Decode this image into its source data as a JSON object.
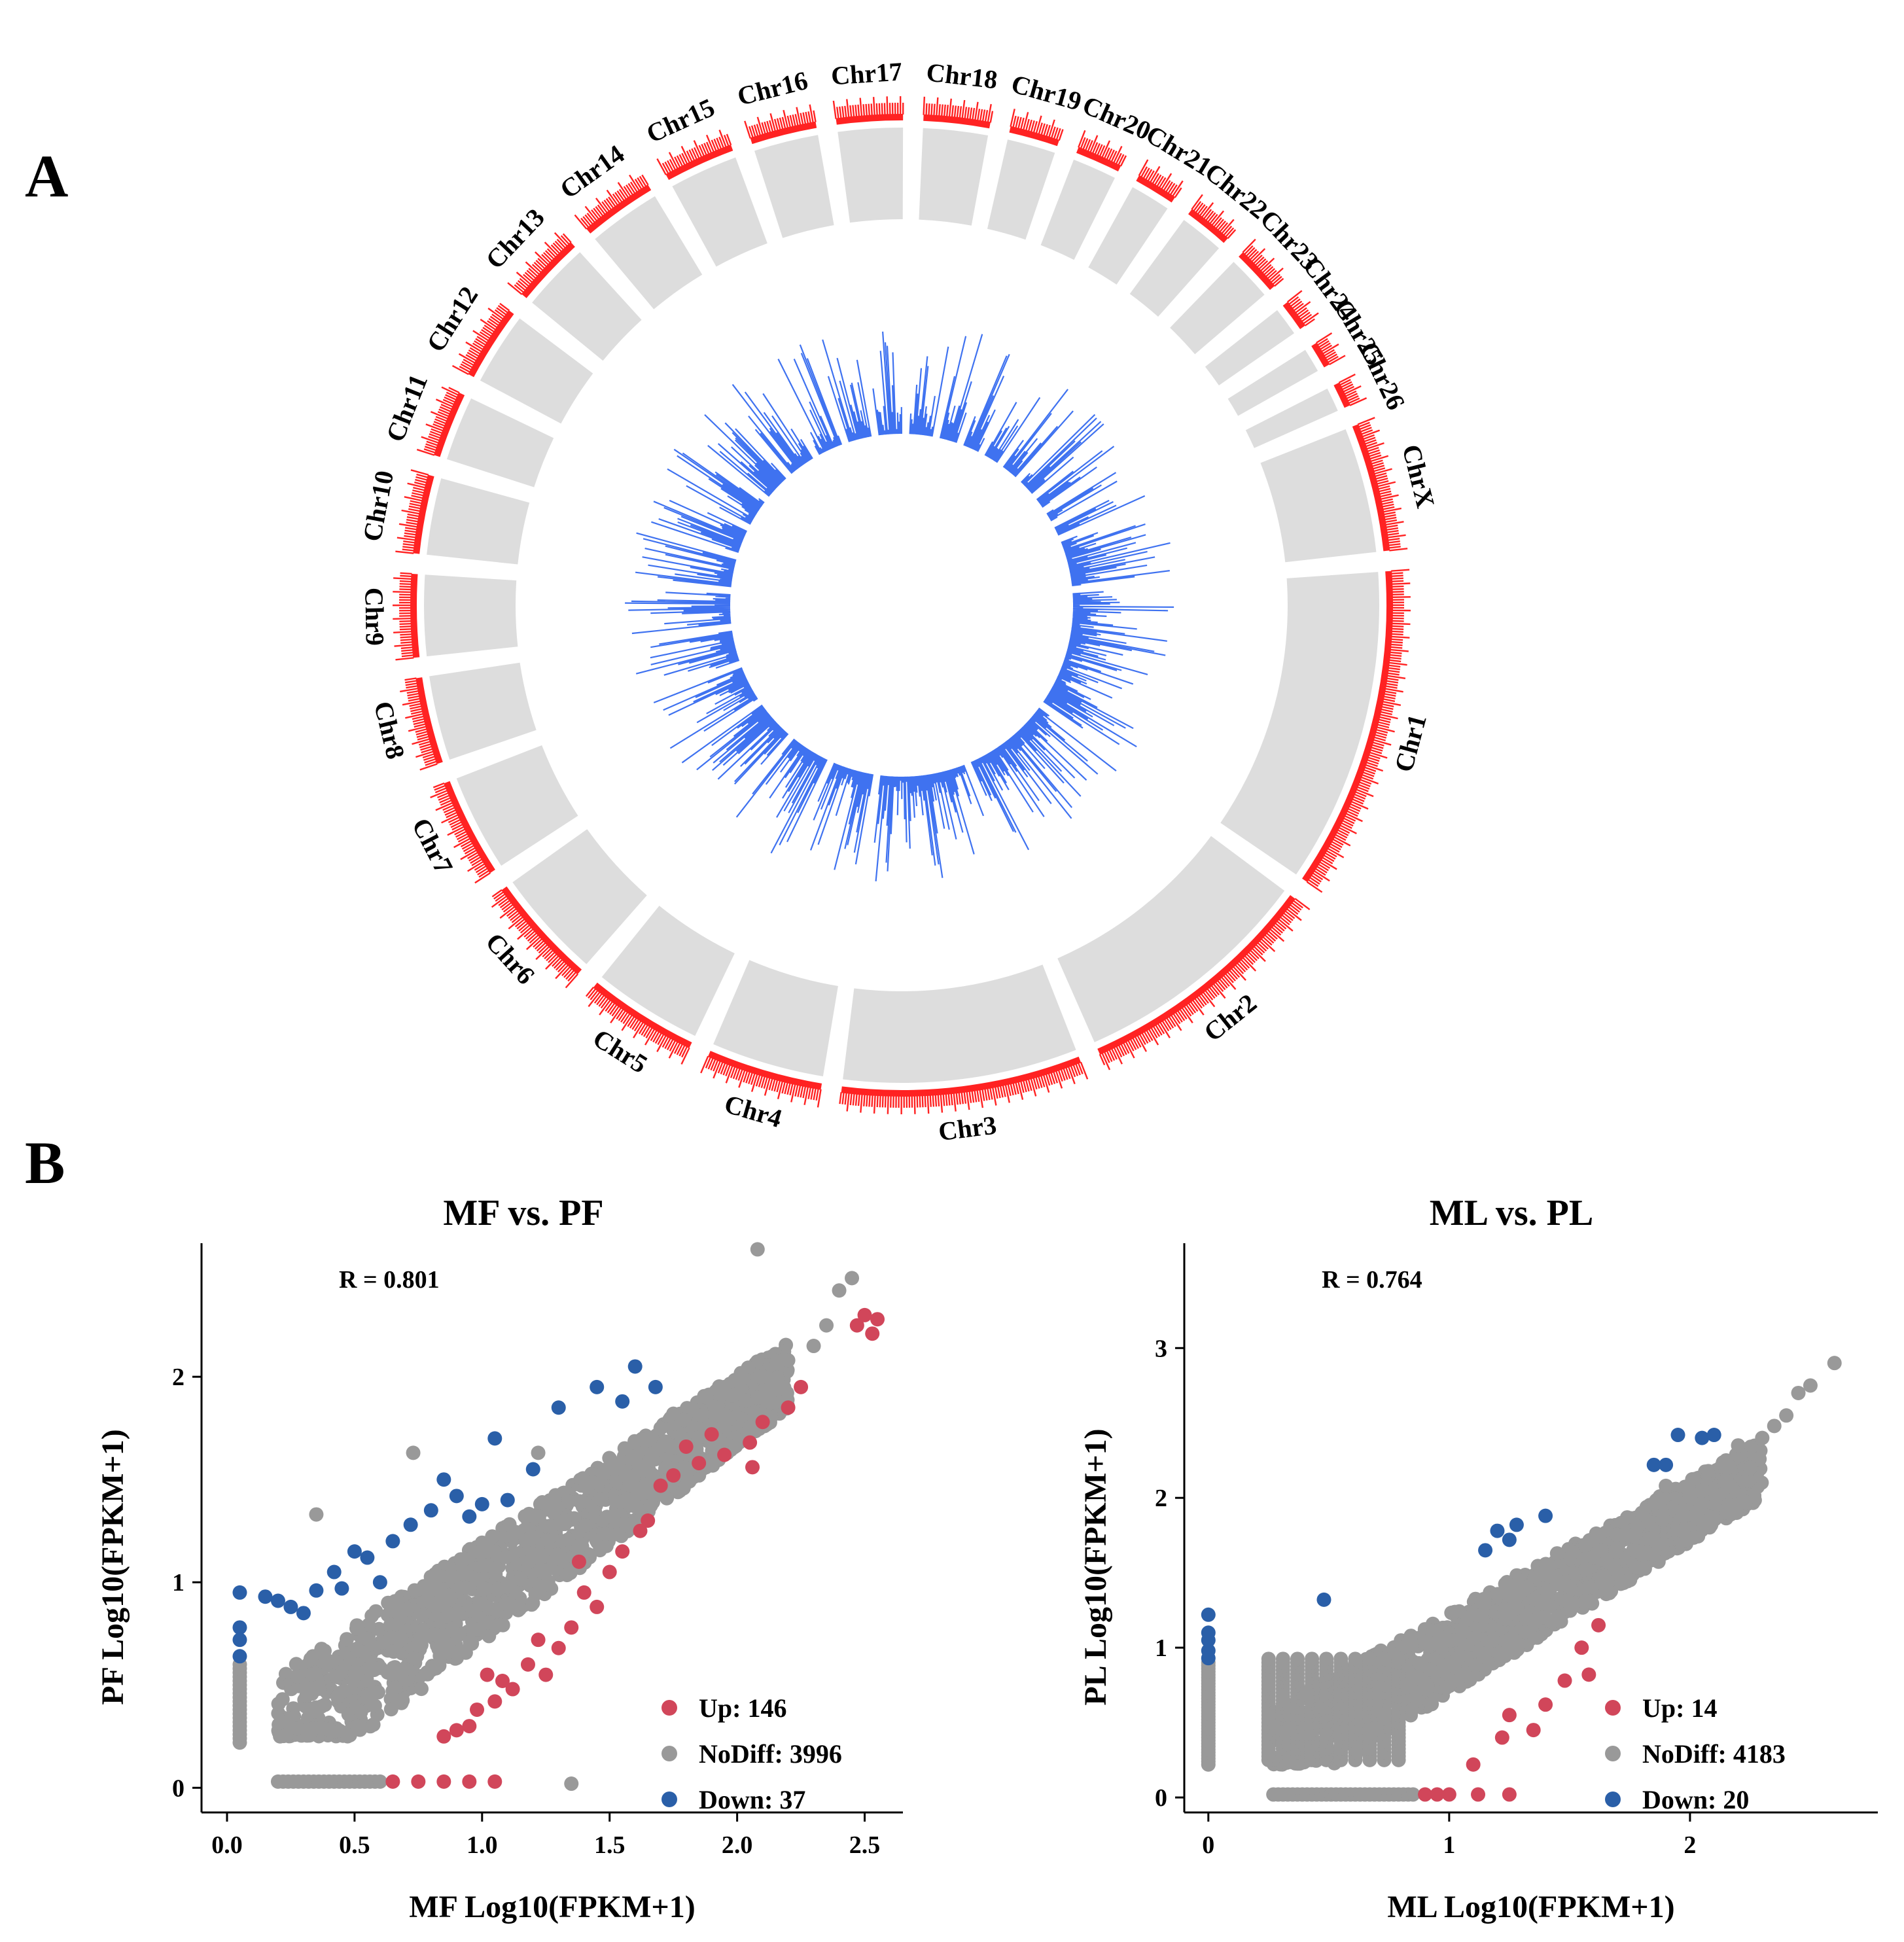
{
  "panel_labels": {
    "a": "A",
    "b": "B"
  },
  "colors": {
    "ideogram": "#dddddd",
    "ticks": "#ff2222",
    "histogram": "#3f72f0",
    "up": "#d1465a",
    "nodiff": "#999999",
    "down": "#2a5fa8"
  },
  "chart_data": [
    {
      "type": "circos",
      "chromosomes": [
        "Chr1",
        "Chr2",
        "Chr3",
        "Chr4",
        "Chr5",
        "Chr6",
        "Chr7",
        "Chr8",
        "Chr9",
        "Chr10",
        "Chr11",
        "Chr12",
        "Chr13",
        "Chr14",
        "Chr15",
        "Chr16",
        "Chr17",
        "Chr18",
        "Chr19",
        "Chr20",
        "Chr21",
        "Chr22",
        "Chr23",
        "Chr24",
        "Chr25",
        "Chr26",
        "ChrX"
      ],
      "relative_sizes": [
        78,
        60,
        58,
        28,
        27,
        27,
        24,
        21,
        20,
        19,
        16,
        18,
        17,
        18,
        17,
        16,
        16,
        16,
        12,
        11,
        10,
        11,
        11,
        7,
        6,
        6,
        31
      ],
      "track": "gene density histogram"
    },
    {
      "type": "scatter",
      "title": "MF vs. PF",
      "xlabel": "MF Log10(FPKM+1)",
      "ylabel": "PF Log10(FPKM+1)",
      "correlation": "R = 0.801",
      "xlim": [
        -0.1,
        2.65
      ],
      "ylim": [
        -0.12,
        2.65
      ],
      "xticks": [
        "0.0",
        "0.5",
        "1.0",
        "1.5",
        "2.0",
        "2.5"
      ],
      "xtick_values": [
        0,
        0.5,
        1,
        1.5,
        2,
        2.5
      ],
      "yticks": [
        "0",
        "1",
        "2"
      ],
      "ytick_values": [
        0,
        1,
        2
      ],
      "legend": [
        "Up: 146",
        "NoDiff: 3996",
        "Down: 37"
      ],
      "series": {
        "up": [
          [
            2.5,
            2.3
          ],
          [
            2.55,
            2.28
          ],
          [
            2.53,
            2.21
          ],
          [
            2.47,
            2.25
          ],
          [
            2.25,
            1.95
          ],
          [
            2.2,
            1.85
          ],
          [
            2.1,
            1.78
          ],
          [
            2.05,
            1.68
          ],
          [
            2.06,
            1.56
          ],
          [
            1.95,
            1.62
          ],
          [
            1.9,
            1.72
          ],
          [
            1.85,
            1.58
          ],
          [
            1.8,
            1.66
          ],
          [
            1.75,
            1.52
          ],
          [
            1.7,
            1.47
          ],
          [
            1.65,
            1.3
          ],
          [
            1.62,
            1.25
          ],
          [
            1.55,
            1.15
          ],
          [
            1.5,
            1.05
          ],
          [
            1.45,
            0.88
          ],
          [
            1.4,
            0.95
          ],
          [
            1.38,
            1.1
          ],
          [
            1.35,
            0.78
          ],
          [
            1.3,
            0.68
          ],
          [
            1.25,
            0.55
          ],
          [
            1.22,
            0.72
          ],
          [
            1.18,
            0.6
          ],
          [
            1.12,
            0.48
          ],
          [
            1.08,
            0.52
          ],
          [
            1.05,
            0.42
          ],
          [
            1.02,
            0.55
          ],
          [
            0.98,
            0.38
          ],
          [
            0.95,
            0.3
          ],
          [
            0.9,
            0.28
          ],
          [
            0.85,
            0.25
          ],
          [
            0.65,
            0.03
          ],
          [
            0.75,
            0.03
          ],
          [
            0.85,
            0.03
          ],
          [
            0.95,
            0.03
          ],
          [
            1.05,
            0.03
          ]
        ],
        "down": [
          [
            0.05,
            0.95
          ],
          [
            0.05,
            0.78
          ],
          [
            0.05,
            0.72
          ],
          [
            0.05,
            0.64
          ],
          [
            0.15,
            0.93
          ],
          [
            0.2,
            0.91
          ],
          [
            0.25,
            0.88
          ],
          [
            0.3,
            0.85
          ],
          [
            0.35,
            0.96
          ],
          [
            0.42,
            1.05
          ],
          [
            0.45,
            0.97
          ],
          [
            0.5,
            1.15
          ],
          [
            0.55,
            1.12
          ],
          [
            0.6,
            1.0
          ],
          [
            0.65,
            1.2
          ],
          [
            0.72,
            1.28
          ],
          [
            0.8,
            1.35
          ],
          [
            0.85,
            1.5
          ],
          [
            0.9,
            1.42
          ],
          [
            0.95,
            1.32
          ],
          [
            1.0,
            1.38
          ],
          [
            1.05,
            1.7
          ],
          [
            1.1,
            1.4
          ],
          [
            1.2,
            1.55
          ],
          [
            1.3,
            1.85
          ],
          [
            1.45,
            1.95
          ],
          [
            1.55,
            1.88
          ],
          [
            1.6,
            2.05
          ],
          [
            1.68,
            1.95
          ]
        ],
        "nodiff_bottom_row": {
          "x_from": 0.2,
          "x_to": 0.62,
          "y": 0.03
        },
        "nodiff_left_column": {
          "x": 0.05,
          "y_from": 0.22,
          "y_to": 0.62
        },
        "nodiff_extra": [
          [
            2.45,
            2.48
          ],
          [
            2.4,
            2.42
          ],
          [
            2.08,
            2.62
          ],
          [
            1.35,
            0.02
          ],
          [
            1.22,
            1.63
          ],
          [
            0.73,
            1.63
          ],
          [
            0.35,
            1.33
          ],
          [
            2.35,
            2.25
          ],
          [
            2.3,
            2.15
          ],
          [
            2.2,
            2.08
          ],
          [
            2.1,
            2.0
          ],
          [
            1.95,
            1.95
          ],
          [
            1.88,
            1.9
          ],
          [
            1.75,
            1.82
          ],
          [
            1.7,
            1.75
          ],
          [
            1.6,
            1.6
          ],
          [
            1.52,
            1.55
          ]
        ]
      }
    },
    {
      "type": "scatter",
      "title": "ML vs. PL",
      "xlabel": "ML Log10(FPKM+1)",
      "ylabel": "PL Log10(FPKM+1)",
      "correlation": "R = 0.764",
      "xlim": [
        -0.1,
        2.78
      ],
      "ylim": [
        -0.1,
        3.7
      ],
      "xticks": [
        "0",
        "1",
        "2"
      ],
      "xtick_values": [
        0,
        1,
        2
      ],
      "yticks": [
        "0",
        "1",
        "2",
        "3"
      ],
      "ytick_values": [
        0,
        1,
        2,
        3
      ],
      "legend": [
        "Up: 14",
        "NoDiff: 4183",
        "Down: 20"
      ],
      "series": {
        "up": [
          [
            1.55,
            1.0
          ],
          [
            1.62,
            1.15
          ],
          [
            1.58,
            0.82
          ],
          [
            1.48,
            0.78
          ],
          [
            1.4,
            0.62
          ],
          [
            1.35,
            0.45
          ],
          [
            1.25,
            0.55
          ],
          [
            1.22,
            0.4
          ],
          [
            1.1,
            0.22
          ],
          [
            0.9,
            0.02
          ],
          [
            0.95,
            0.02
          ],
          [
            1.0,
            0.02
          ],
          [
            1.12,
            0.02
          ],
          [
            1.25,
            0.02
          ]
        ],
        "down": [
          [
            0.0,
            1.22
          ],
          [
            0.0,
            1.1
          ],
          [
            0.0,
            1.05
          ],
          [
            0.0,
            0.98
          ],
          [
            0.0,
            0.93
          ],
          [
            0.48,
            1.32
          ],
          [
            1.15,
            1.65
          ],
          [
            1.2,
            1.78
          ],
          [
            1.25,
            1.72
          ],
          [
            1.28,
            1.82
          ],
          [
            1.4,
            1.88
          ],
          [
            1.85,
            2.22
          ],
          [
            1.9,
            2.22
          ],
          [
            1.95,
            2.42
          ],
          [
            2.05,
            2.4
          ],
          [
            2.1,
            2.42
          ]
        ],
        "nodiff_bottom_row": {
          "x_from": 0.27,
          "x_to": 0.87,
          "y": 0.02
        },
        "nodiff_left_column": {
          "x": 0.0,
          "y_from": 0.22,
          "y_to": 0.92
        },
        "nodiff_extra": [
          [
            2.6,
            2.9
          ],
          [
            2.5,
            2.75
          ],
          [
            2.45,
            2.7
          ],
          [
            2.4,
            2.55
          ],
          [
            2.35,
            2.48
          ],
          [
            2.3,
            2.4
          ],
          [
            2.2,
            2.35
          ],
          [
            2.15,
            2.25
          ],
          [
            2.25,
            2.2
          ],
          [
            2.05,
            2.05
          ],
          [
            1.9,
            2.08
          ],
          [
            1.8,
            1.9
          ],
          [
            1.75,
            1.75
          ],
          [
            1.6,
            1.6
          ]
        ]
      }
    }
  ]
}
